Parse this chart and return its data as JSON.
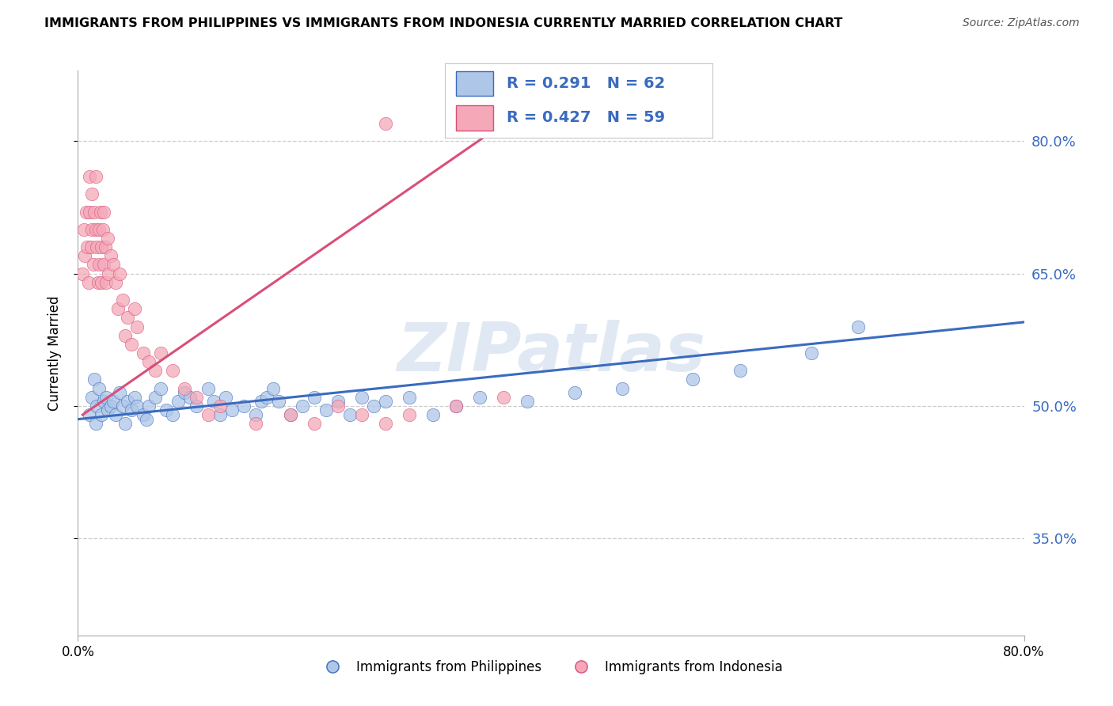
{
  "title": "IMMIGRANTS FROM PHILIPPINES VS IMMIGRANTS FROM INDONESIA CURRENTLY MARRIED CORRELATION CHART",
  "source": "Source: ZipAtlas.com",
  "ylabel": "Currently Married",
  "legend_blue_r": "0.291",
  "legend_blue_n": "62",
  "legend_pink_r": "0.427",
  "legend_pink_n": "59",
  "legend_label_blue": "Immigrants from Philippines",
  "legend_label_pink": "Immigrants from Indonesia",
  "blue_scatter_color": "#aec6e8",
  "pink_scatter_color": "#f4a8b8",
  "blue_line_color": "#3a6bbf",
  "pink_line_color": "#d94f78",
  "ytick_values": [
    0.35,
    0.5,
    0.65,
    0.8
  ],
  "ytick_labels": [
    "35.0%",
    "50.0%",
    "65.0%",
    "80.0%"
  ],
  "xlim": [
    0.0,
    0.8
  ],
  "ylim": [
    0.24,
    0.88
  ],
  "watermark_text": "ZIPatlas",
  "watermark_color": "#c8d8ea",
  "blue_points_x": [
    0.01,
    0.012,
    0.014,
    0.015,
    0.016,
    0.018,
    0.02,
    0.022,
    0.024,
    0.025,
    0.028,
    0.03,
    0.032,
    0.035,
    0.038,
    0.04,
    0.042,
    0.045,
    0.048,
    0.05,
    0.055,
    0.058,
    0.06,
    0.065,
    0.07,
    0.075,
    0.08,
    0.085,
    0.09,
    0.095,
    0.1,
    0.11,
    0.115,
    0.12,
    0.125,
    0.13,
    0.14,
    0.15,
    0.155,
    0.16,
    0.165,
    0.17,
    0.18,
    0.19,
    0.2,
    0.21,
    0.22,
    0.23,
    0.24,
    0.25,
    0.26,
    0.28,
    0.3,
    0.32,
    0.34,
    0.38,
    0.42,
    0.46,
    0.52,
    0.56,
    0.62,
    0.66
  ],
  "blue_points_y": [
    0.49,
    0.51,
    0.53,
    0.48,
    0.5,
    0.52,
    0.49,
    0.505,
    0.51,
    0.495,
    0.5,
    0.505,
    0.49,
    0.515,
    0.5,
    0.48,
    0.505,
    0.495,
    0.51,
    0.5,
    0.49,
    0.485,
    0.5,
    0.51,
    0.52,
    0.495,
    0.49,
    0.505,
    0.515,
    0.51,
    0.5,
    0.52,
    0.505,
    0.49,
    0.51,
    0.495,
    0.5,
    0.49,
    0.505,
    0.51,
    0.52,
    0.505,
    0.49,
    0.5,
    0.51,
    0.495,
    0.505,
    0.49,
    0.51,
    0.5,
    0.505,
    0.51,
    0.49,
    0.5,
    0.51,
    0.505,
    0.515,
    0.52,
    0.53,
    0.54,
    0.56,
    0.59
  ],
  "pink_points_x": [
    0.004,
    0.005,
    0.006,
    0.007,
    0.008,
    0.009,
    0.01,
    0.01,
    0.011,
    0.012,
    0.012,
    0.013,
    0.014,
    0.015,
    0.015,
    0.016,
    0.017,
    0.018,
    0.018,
    0.019,
    0.02,
    0.02,
    0.021,
    0.022,
    0.022,
    0.023,
    0.024,
    0.025,
    0.026,
    0.028,
    0.03,
    0.032,
    0.034,
    0.035,
    0.038,
    0.04,
    0.042,
    0.045,
    0.048,
    0.05,
    0.055,
    0.06,
    0.065,
    0.07,
    0.08,
    0.09,
    0.1,
    0.11,
    0.12,
    0.15,
    0.18,
    0.2,
    0.22,
    0.24,
    0.26,
    0.28,
    0.32,
    0.36,
    0.26
  ],
  "pink_points_y": [
    0.65,
    0.7,
    0.67,
    0.72,
    0.68,
    0.64,
    0.76,
    0.72,
    0.68,
    0.74,
    0.7,
    0.66,
    0.72,
    0.76,
    0.7,
    0.68,
    0.64,
    0.7,
    0.66,
    0.72,
    0.68,
    0.64,
    0.7,
    0.66,
    0.72,
    0.68,
    0.64,
    0.69,
    0.65,
    0.67,
    0.66,
    0.64,
    0.61,
    0.65,
    0.62,
    0.58,
    0.6,
    0.57,
    0.61,
    0.59,
    0.56,
    0.55,
    0.54,
    0.56,
    0.54,
    0.52,
    0.51,
    0.49,
    0.5,
    0.48,
    0.49,
    0.48,
    0.5,
    0.49,
    0.48,
    0.49,
    0.5,
    0.51,
    0.82
  ],
  "pink_trendline_x": [
    0.004,
    0.36
  ],
  "pink_trendline_y": [
    0.49,
    0.82
  ],
  "blue_trendline_x": [
    0.0,
    0.8
  ],
  "blue_trendline_y": [
    0.485,
    0.595
  ]
}
